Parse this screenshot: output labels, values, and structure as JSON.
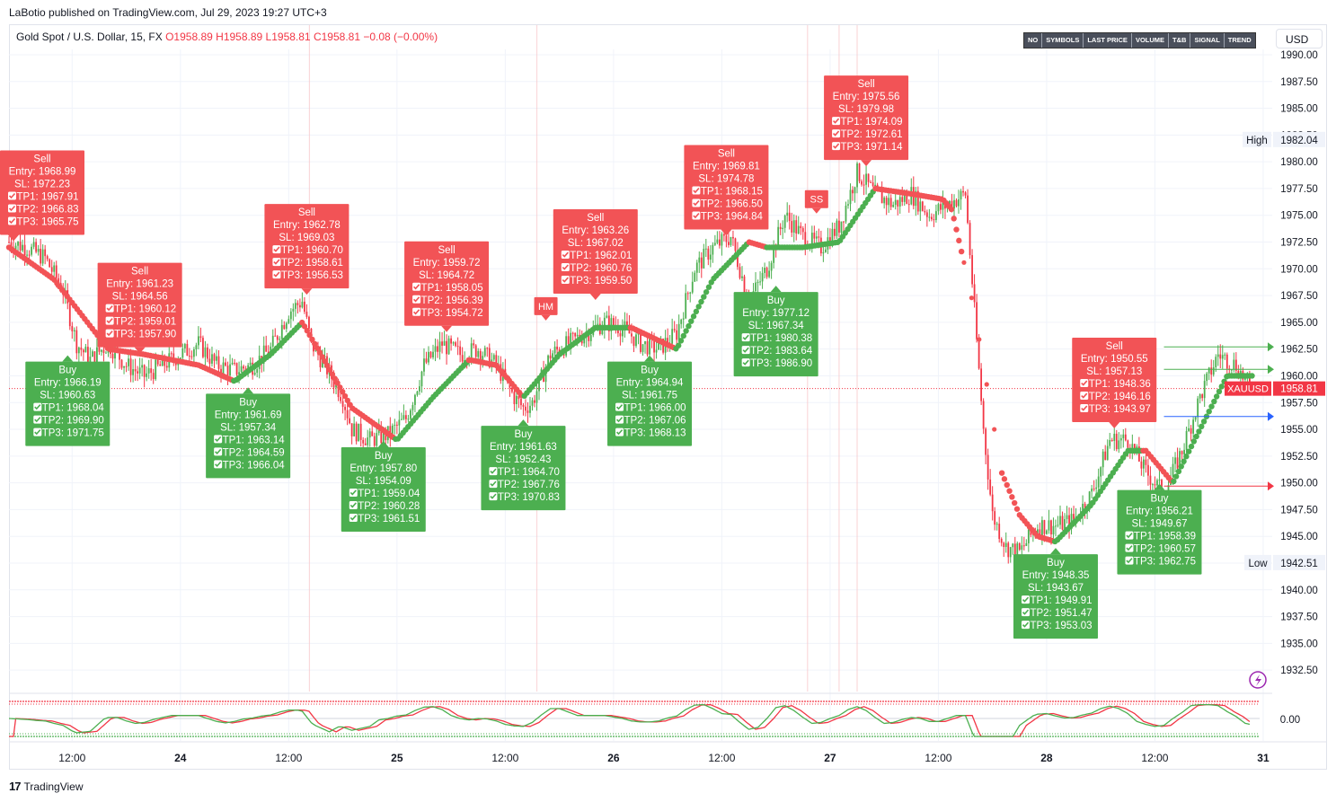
{
  "publisher": "LaBotio published on TradingView.com, Jul 29, 2023 19:27 UTC+3",
  "symbol": {
    "name": "Gold Spot / U.S. Dollar, 15, FX",
    "open": "O1958.89",
    "high": "H1958.89",
    "low": "L1958.81",
    "close": "C1958.81",
    "change": "−0.08 (−0.00%)"
  },
  "toolbar": [
    "NO",
    "SYMBOLS",
    "LAST PRICE",
    "VOLUME",
    "T&B",
    "SIGNAL",
    "TREND"
  ],
  "currency": "USD",
  "footer_brand": "TradingView",
  "colors": {
    "sell": "#f25356",
    "buy": "#4caf50",
    "up_candle": "#4caf50",
    "down_candle": "#f23645"
  },
  "chart_data": {
    "type": "candlestick",
    "y_ticks": [
      "1990.00",
      "1987.50",
      "1985.00",
      "1982.50",
      "1980.00",
      "1977.50",
      "1975.00",
      "1972.50",
      "1970.00",
      "1967.50",
      "1965.00",
      "1962.50",
      "1960.00",
      "1957.50",
      "1955.00",
      "1952.50",
      "1950.00",
      "1947.50",
      "1945.00",
      "1942.50",
      "1940.00",
      "1937.50",
      "1935.00",
      "1932.50"
    ],
    "ylim": [
      1930.5,
      1990.5
    ],
    "x_ticks": [
      "12:00",
      "24",
      "12:00",
      "25",
      "12:00",
      "26",
      "12:00",
      "27",
      "12:00",
      "28",
      "12:00",
      "31"
    ],
    "x_tick_hours": [
      12,
      24,
      36,
      48,
      60,
      72,
      84,
      96,
      108,
      120,
      132,
      144
    ],
    "x_range_hours": [
      5,
      145
    ],
    "price_labels": {
      "high_label": "High",
      "high_value": "1982.04",
      "low_label": "Low",
      "low_value": "1942.51",
      "last_symbol": "XAUUSD",
      "last_value": "1958.81",
      "last_price": 1958.81
    },
    "close_path": [
      [
        5,
        1972.5
      ],
      [
        7,
        1972
      ],
      [
        9,
        1971
      ],
      [
        11,
        1968
      ],
      [
        12.5,
        1963
      ],
      [
        14,
        1961.5
      ],
      [
        16,
        1963
      ],
      [
        18,
        1961
      ],
      [
        20,
        1960
      ],
      [
        22,
        1961
      ],
      [
        24,
        1962
      ],
      [
        26,
        1963
      ],
      [
        28,
        1961
      ],
      [
        30,
        1960.5
      ],
      [
        32,
        1961
      ],
      [
        34,
        1962.5
      ],
      [
        36,
        1966
      ],
      [
        37.5,
        1967
      ],
      [
        38.5,
        1963
      ],
      [
        40,
        1961
      ],
      [
        42,
        1958
      ],
      [
        43,
        1955
      ],
      [
        45,
        1954
      ],
      [
        47,
        1954.5
      ],
      [
        49,
        1956
      ],
      [
        51,
        1961
      ],
      [
        53,
        1963
      ],
      [
        55,
        1962
      ],
      [
        57,
        1962.5
      ],
      [
        59,
        1961
      ],
      [
        61,
        1958
      ],
      [
        62,
        1957
      ],
      [
        63,
        1957.5
      ],
      [
        65,
        1962
      ],
      [
        67,
        1963
      ],
      [
        69,
        1964
      ],
      [
        71,
        1965
      ],
      [
        73,
        1964.5
      ],
      [
        75,
        1963
      ],
      [
        77,
        1962.5
      ],
      [
        79,
        1964
      ],
      [
        81,
        1970
      ],
      [
        83,
        1972
      ],
      [
        85,
        1973
      ],
      [
        87,
        1967
      ],
      [
        89,
        1970
      ],
      [
        91,
        1975
      ],
      [
        93,
        1973
      ],
      [
        95,
        1972
      ],
      [
        97,
        1974
      ],
      [
        99,
        1979
      ],
      [
        101,
        1977
      ],
      [
        103,
        1976
      ],
      [
        105,
        1977
      ],
      [
        107,
        1975
      ],
      [
        109,
        1976
      ],
      [
        111,
        1977
      ],
      [
        112,
        1966
      ],
      [
        113,
        1955
      ],
      [
        114,
        1947
      ],
      [
        115.5,
        1944
      ],
      [
        117,
        1943.5
      ],
      [
        119,
        1946
      ],
      [
        121,
        1946
      ],
      [
        123,
        1946.5
      ],
      [
        125,
        1949
      ],
      [
        127,
        1954
      ],
      [
        129,
        1954
      ],
      [
        131,
        1951
      ],
      [
        133,
        1949
      ],
      [
        135,
        1953
      ],
      [
        137,
        1958
      ],
      [
        139,
        1962
      ],
      [
        141,
        1961
      ],
      [
        142.5,
        1958.81
      ]
    ],
    "trend_line": [
      [
        5,
        1972
      ],
      [
        10,
        1969
      ],
      [
        16,
        1962.5
      ],
      [
        20,
        1962
      ],
      [
        26,
        1961
      ],
      [
        30,
        1959.5
      ],
      [
        34,
        1962
      ],
      [
        37.5,
        1965
      ],
      [
        43,
        1957
      ],
      [
        48,
        1954
      ],
      [
        52,
        1958
      ],
      [
        56,
        1961.5
      ],
      [
        59,
        1961
      ],
      [
        62,
        1958
      ],
      [
        66,
        1962
      ],
      [
        70,
        1964.5
      ],
      [
        74,
        1964.5
      ],
      [
        79,
        1962.5
      ],
      [
        83,
        1969
      ],
      [
        87,
        1972.5
      ],
      [
        89,
        1972
      ],
      [
        93,
        1972
      ],
      [
        97,
        1972.5
      ],
      [
        101,
        1977.5
      ],
      [
        105,
        1977
      ],
      [
        108.5,
        1976.5
      ],
      [
        109.5,
        1975.5
      ],
      [
        111,
        1970
      ],
      [
        112,
        1966
      ],
      [
        113,
        1961
      ],
      [
        114,
        1956
      ],
      [
        115,
        1951
      ],
      [
        117,
        1947
      ],
      [
        119,
        1945
      ],
      [
        121,
        1944.5
      ],
      [
        125,
        1948
      ],
      [
        129,
        1953
      ],
      [
        131,
        1953
      ],
      [
        134,
        1950
      ],
      [
        137,
        1955
      ],
      [
        140,
        1960
      ],
      [
        143,
        1960
      ]
    ],
    "signals": [
      {
        "side": "Sell",
        "x": 5.5,
        "price": 1972.5,
        "entry": "Entry: 1968.99",
        "sl": "SL: 1972.23",
        "tp1": "TP1: 1967.91",
        "tp2": "TP2: 1966.83",
        "tp3": "TP3: 1965.75"
      },
      {
        "side": "Buy",
        "x": 11.5,
        "price": 1962,
        "entry": "Entry: 1966.19",
        "sl": "SL: 1960.63",
        "tp1": "TP1: 1968.04",
        "tp2": "TP2: 1969.90",
        "tp3": "TP3: 1971.75"
      },
      {
        "side": "Sell",
        "x": 19.5,
        "price": 1962,
        "entry": "Entry: 1961.23",
        "sl": "SL: 1964.56",
        "tp1": "TP1: 1960.12",
        "tp2": "TP2: 1959.01",
        "tp3": "TP3: 1957.90"
      },
      {
        "side": "Buy",
        "x": 31.5,
        "price": 1959,
        "entry": "Entry: 1961.69",
        "sl": "SL: 1957.34",
        "tp1": "TP1: 1963.14",
        "tp2": "TP2: 1964.59",
        "tp3": "TP3: 1966.04"
      },
      {
        "side": "Sell",
        "x": 38,
        "price": 1967.5,
        "entry": "Entry: 1962.78",
        "sl": "SL: 1969.03",
        "tp1": "TP1: 1960.70",
        "tp2": "TP2: 1958.61",
        "tp3": "TP3: 1956.53"
      },
      {
        "side": "Buy",
        "x": 46.5,
        "price": 1954,
        "entry": "Entry: 1957.80",
        "sl": "SL: 1954.09",
        "tp1": "TP1: 1959.04",
        "tp2": "TP2: 1960.28",
        "tp3": "TP3: 1961.51"
      },
      {
        "side": "Sell",
        "x": 53.5,
        "price": 1964,
        "entry": "Entry: 1959.72",
        "sl": "SL: 1964.72",
        "tp1": "TP1: 1958.05",
        "tp2": "TP2: 1956.39",
        "tp3": "TP3: 1954.72"
      },
      {
        "side": "Buy",
        "x": 62,
        "price": 1956,
        "entry": "Entry: 1961.63",
        "sl": "SL: 1952.43",
        "tp1": "TP1: 1964.70",
        "tp2": "TP2: 1967.76",
        "tp3": "TP3: 1970.83"
      },
      {
        "side": "Sell",
        "x": 70,
        "price": 1967,
        "entry": "Entry: 1963.26",
        "sl": "SL: 1967.02",
        "tp1": "TP1: 1962.01",
        "tp2": "TP2: 1960.76",
        "tp3": "TP3: 1959.50"
      },
      {
        "side": "Buy",
        "x": 76,
        "price": 1962,
        "entry": "Entry: 1964.94",
        "sl": "SL: 1961.75",
        "tp1": "TP1: 1966.00",
        "tp2": "TP2: 1967.06",
        "tp3": "TP3: 1968.13"
      },
      {
        "side": "Sell",
        "x": 84.5,
        "price": 1973,
        "entry": "Entry: 1969.81",
        "sl": "SL: 1974.78",
        "tp1": "TP1: 1968.15",
        "tp2": "TP2: 1966.50",
        "tp3": "TP3: 1964.84"
      },
      {
        "side": "Buy",
        "x": 90,
        "price": 1968.5,
        "entry": "Entry: 1977.12",
        "sl": "SL: 1967.34",
        "tp1": "TP1: 1980.38",
        "tp2": "TP2: 1983.64",
        "tp3": "TP3: 1986.90"
      },
      {
        "side": "Sell",
        "x": 100,
        "price": 1979.5,
        "entry": "Entry: 1975.56",
        "sl": "SL: 1979.98",
        "tp1": "TP1: 1974.09",
        "tp2": "TP2: 1972.61",
        "tp3": "TP3: 1971.14"
      },
      {
        "side": "Buy",
        "x": 121,
        "price": 1944,
        "entry": "Entry: 1948.35",
        "sl": "SL: 1943.67",
        "tp1": "TP1: 1949.91",
        "tp2": "TP2: 1951.47",
        "tp3": "TP3: 1953.03"
      },
      {
        "side": "Sell",
        "x": 127.5,
        "price": 1955,
        "entry": "Entry: 1950.55",
        "sl": "SL: 1957.13",
        "tp1": "TP1: 1948.36",
        "tp2": "TP2: 1946.16",
        "tp3": "TP3: 1943.97"
      },
      {
        "side": "Buy",
        "x": 132.5,
        "price": 1950,
        "entry": "Entry: 1956.21",
        "sl": "SL: 1949.67",
        "tp1": "TP1: 1958.39",
        "tp2": "TP2: 1960.57",
        "tp3": "TP3: 1962.75"
      }
    ],
    "tags": [
      {
        "text": "HM",
        "x": 64.5,
        "price": 1965
      },
      {
        "text": "SS",
        "x": 94.5,
        "price": 1975
      }
    ],
    "levels": [
      {
        "price": 1962.7,
        "color": "#4caf50",
        "x_start": 133
      },
      {
        "price": 1960.6,
        "color": "#4caf50",
        "x_start": 133
      },
      {
        "price": 1956.2,
        "color": "#2962ff",
        "x_start": 133
      },
      {
        "price": 1949.7,
        "color": "#f23645",
        "x_start": 133
      }
    ],
    "oscillator": {
      "zero_label": "0.00"
    }
  }
}
